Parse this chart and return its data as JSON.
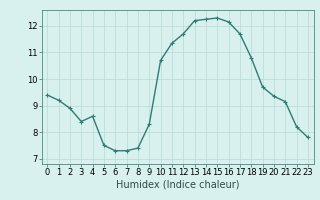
{
  "x": [
    0,
    1,
    2,
    3,
    4,
    5,
    6,
    7,
    8,
    9,
    10,
    11,
    12,
    13,
    14,
    15,
    16,
    17,
    18,
    19,
    20,
    21,
    22,
    23
  ],
  "y": [
    9.4,
    9.2,
    8.9,
    8.4,
    8.6,
    7.5,
    7.3,
    7.3,
    7.4,
    8.3,
    10.7,
    11.35,
    11.7,
    12.2,
    12.25,
    12.3,
    12.15,
    11.7,
    10.8,
    9.7,
    9.35,
    9.15,
    8.2,
    7.8
  ],
  "line_color": "#2e7d72",
  "marker": "+",
  "marker_size": 3,
  "xlabel": "Humidex (Indice chaleur)",
  "xlim": [
    -0.5,
    23.5
  ],
  "ylim": [
    6.8,
    12.6
  ],
  "yticks": [
    7,
    8,
    9,
    10,
    11,
    12
  ],
  "xticks": [
    0,
    1,
    2,
    3,
    4,
    5,
    6,
    7,
    8,
    9,
    10,
    11,
    12,
    13,
    14,
    15,
    16,
    17,
    18,
    19,
    20,
    21,
    22,
    23
  ],
  "bg_color": "#d8f0ee",
  "grid_color": "#b8d8d4",
  "tick_label_fontsize": 6.0,
  "xlabel_fontsize": 7.0,
  "line_width": 1.0,
  "spine_color": "#4a8a80"
}
